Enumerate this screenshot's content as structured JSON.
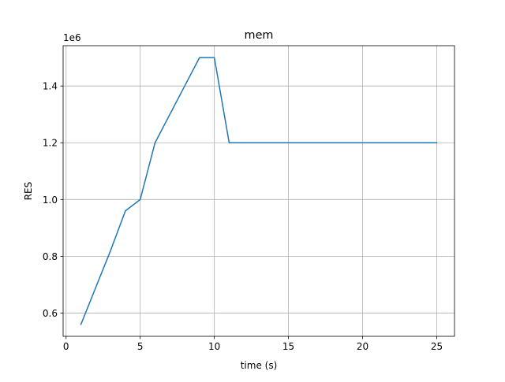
{
  "chart_data": {
    "type": "line",
    "title": "mem",
    "xlabel": "time (s)",
    "ylabel": "RES",
    "offset_text": "1e6",
    "xlim": [
      -0.2,
      26.2
    ],
    "ylim": [
      0.518,
      1.542
    ],
    "xticks": [
      0,
      5,
      10,
      15,
      20,
      25
    ],
    "yticks": [
      0.6,
      0.8,
      1.0,
      1.2,
      1.4
    ],
    "xtick_labels": [
      "0",
      "5",
      "10",
      "15",
      "20",
      "25"
    ],
    "ytick_labels": [
      "0.6",
      "0.8",
      "1.0",
      "1.2",
      "1.4"
    ],
    "grid": true,
    "series": [
      {
        "color": "#1f77b4",
        "x": [
          1,
          2,
          3,
          4,
          5,
          6,
          7,
          8,
          9,
          10,
          11,
          12,
          13,
          14,
          15,
          16,
          17,
          18,
          19,
          20,
          21,
          22,
          23,
          24,
          25
        ],
        "y": [
          0.56,
          0.69,
          0.82,
          0.96,
          1.0,
          1.2,
          1.3,
          1.4,
          1.5,
          1.5,
          1.2,
          1.2,
          1.2,
          1.2,
          1.2,
          1.2,
          1.2,
          1.2,
          1.2,
          1.2,
          1.2,
          1.2,
          1.2,
          1.2,
          1.2
        ]
      }
    ]
  }
}
